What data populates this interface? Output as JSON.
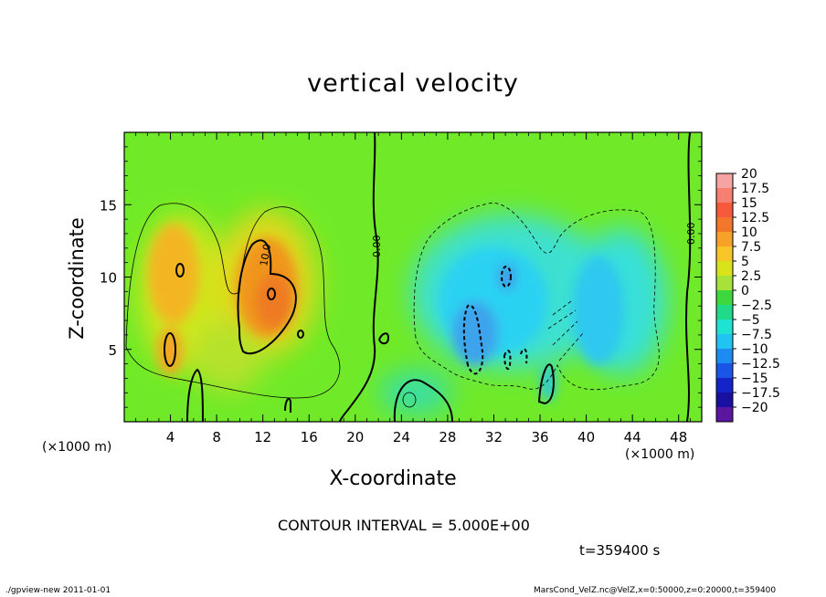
{
  "title": "vertical velocity",
  "chart_data": {
    "type": "heatmap",
    "title": "vertical velocity",
    "xlabel": "X-coordinate",
    "ylabel": "Z-coordinate",
    "x_unit_label": "(×1000 m)",
    "xlim": [
      0,
      50
    ],
    "ylim": [
      0,
      20
    ],
    "x_ticks": [
      4,
      8,
      12,
      16,
      20,
      24,
      28,
      32,
      36,
      40,
      44,
      48
    ],
    "y_ticks": [
      5,
      10,
      15
    ],
    "colorbar": {
      "levels": [
        20,
        17.5,
        15,
        12.5,
        10,
        7.5,
        5,
        2.5,
        0,
        -2.5,
        -5,
        -7.5,
        -10,
        -12.5,
        -15,
        -17.5,
        -20
      ],
      "colors": [
        "#f5a3a3",
        "#f77f72",
        "#f55a3c",
        "#f2762c",
        "#f6a12a",
        "#f8c52a",
        "#d9e31c",
        "#a6e23a",
        "#3ed83e",
        "#22d98a",
        "#20e2d2",
        "#22c3f2",
        "#1d8cf0",
        "#1b55e6",
        "#1424c8",
        "#1a10a0",
        "#5a169e"
      ],
      "field_colors": {
        "zero": "#70ea28",
        "upward_peak": "#f0871c",
        "downward_peak": "#46a8ea"
      }
    },
    "contour_interval": "5.000E+00",
    "contour_labels": [
      "10.0",
      "0.00",
      "0.00",
      "0.00"
    ],
    "time": "t=359400 s"
  },
  "contour_note": "CONTOUR INTERVAL = 5.000E+00",
  "time_label": "t=359400  s",
  "footer_left": "./gpview-new  2011-01-01",
  "footer_right": "MarsCond_VelZ.nc@VelZ,x=0:50000,z=0:20000,t=359400"
}
